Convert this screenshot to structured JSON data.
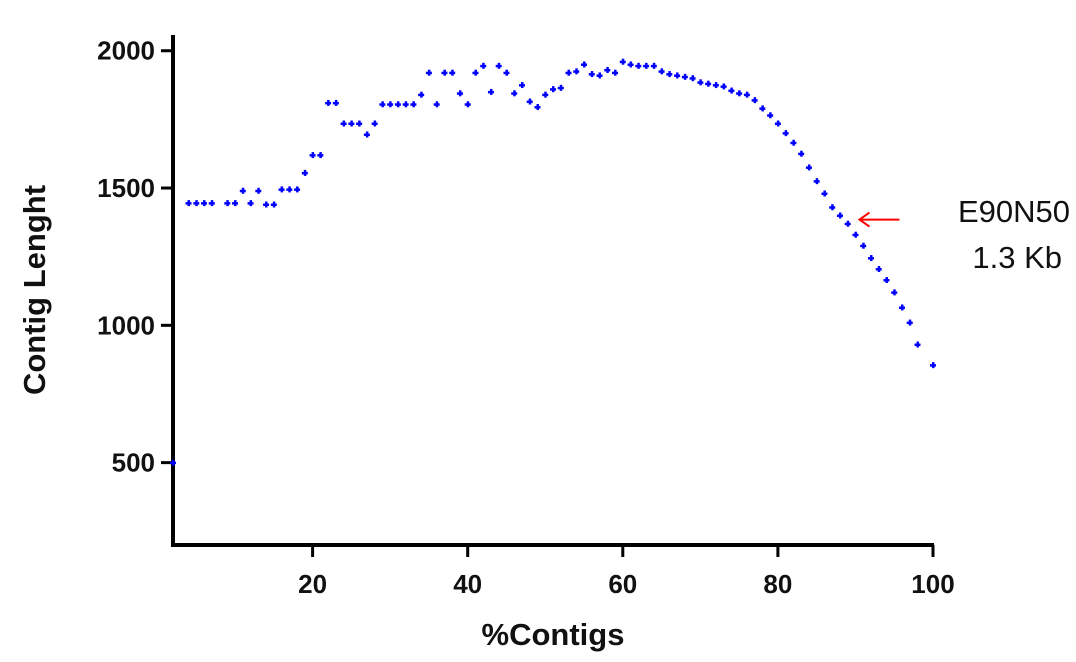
{
  "chart_data": {
    "type": "scatter",
    "title": "",
    "xlabel": "%Contigs",
    "ylabel": "Contig Lenght",
    "xlim": [
      2,
      100
    ],
    "ylim": [
      200,
      2050
    ],
    "xticks": [
      20,
      40,
      60,
      80,
      100
    ],
    "yticks": [
      500,
      1000,
      1500,
      2000
    ],
    "grid": false,
    "point_color": "#0000ff",
    "series": [
      {
        "points": [
          [
            2,
            500
          ],
          [
            4,
            1445
          ],
          [
            5,
            1445
          ],
          [
            6,
            1445
          ],
          [
            7,
            1445
          ],
          [
            9,
            1445
          ],
          [
            10,
            1445
          ],
          [
            11,
            1490
          ],
          [
            12,
            1445
          ],
          [
            13,
            1490
          ],
          [
            14,
            1440
          ],
          [
            15,
            1440
          ],
          [
            16,
            1495
          ],
          [
            17,
            1495
          ],
          [
            18,
            1495
          ],
          [
            19,
            1555
          ],
          [
            20,
            1620
          ],
          [
            21,
            1620
          ],
          [
            22,
            1810
          ],
          [
            23,
            1810
          ],
          [
            24,
            1735
          ],
          [
            25,
            1735
          ],
          [
            26,
            1735
          ],
          [
            27,
            1695
          ],
          [
            28,
            1735
          ],
          [
            29,
            1805
          ],
          [
            30,
            1805
          ],
          [
            31,
            1805
          ],
          [
            32,
            1805
          ],
          [
            33,
            1805
          ],
          [
            34,
            1840
          ],
          [
            35,
            1920
          ],
          [
            36,
            1805
          ],
          [
            37,
            1920
          ],
          [
            38,
            1920
          ],
          [
            39,
            1845
          ],
          [
            40,
            1805
          ],
          [
            41,
            1920
          ],
          [
            42,
            1945
          ],
          [
            43,
            1850
          ],
          [
            44,
            1945
          ],
          [
            45,
            1920
          ],
          [
            46,
            1845
          ],
          [
            47,
            1875
          ],
          [
            48,
            1815
          ],
          [
            49,
            1795
          ],
          [
            50,
            1840
          ],
          [
            51,
            1860
          ],
          [
            52,
            1865
          ],
          [
            53,
            1920
          ],
          [
            54,
            1925
          ],
          [
            55,
            1950
          ],
          [
            56,
            1915
          ],
          [
            57,
            1910
          ],
          [
            58,
            1930
          ],
          [
            59,
            1920
          ],
          [
            60,
            1960
          ],
          [
            61,
            1950
          ],
          [
            62,
            1945
          ],
          [
            63,
            1945
          ],
          [
            64,
            1945
          ],
          [
            65,
            1925
          ],
          [
            66,
            1915
          ],
          [
            67,
            1910
          ],
          [
            68,
            1905
          ],
          [
            69,
            1900
          ],
          [
            70,
            1885
          ],
          [
            71,
            1880
          ],
          [
            72,
            1875
          ],
          [
            73,
            1870
          ],
          [
            74,
            1855
          ],
          [
            75,
            1845
          ],
          [
            76,
            1840
          ],
          [
            77,
            1820
          ],
          [
            78,
            1790
          ],
          [
            79,
            1765
          ],
          [
            80,
            1735
          ],
          [
            81,
            1700
          ],
          [
            82,
            1665
          ],
          [
            83,
            1625
          ],
          [
            84,
            1575
          ],
          [
            85,
            1525
          ],
          [
            86,
            1480
          ],
          [
            87,
            1430
          ],
          [
            88,
            1400
          ],
          [
            89,
            1370
          ],
          [
            90,
            1330
          ],
          [
            91,
            1290
          ],
          [
            92,
            1245
          ],
          [
            93,
            1205
          ],
          [
            94,
            1165
          ],
          [
            95,
            1120
          ],
          [
            96,
            1065
          ],
          [
            97,
            1010
          ],
          [
            98,
            930
          ],
          [
            100,
            855
          ]
        ]
      }
    ],
    "annotation": {
      "line1": "E90N50",
      "line2": "1.3 Kb",
      "arrow_color": "#ff0000",
      "target": [
        90,
        1385
      ]
    }
  }
}
